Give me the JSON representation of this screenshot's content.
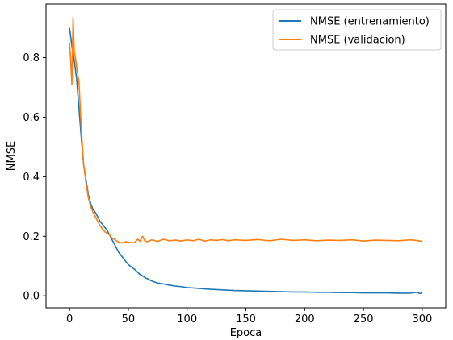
{
  "chart_data": {
    "type": "line",
    "xlabel": "Epoca",
    "ylabel": "NMSE",
    "xlim": [
      -20,
      320
    ],
    "ylim": [
      -0.04,
      0.98
    ],
    "xticks": [
      0,
      50,
      100,
      150,
      200,
      250,
      300
    ],
    "yticks": [
      0.0,
      0.2,
      0.4,
      0.6,
      0.8
    ],
    "grid": false,
    "legend_position": "top-right",
    "series": [
      {
        "name": "NMSE (entrenamiento)",
        "color": "#1f77b4",
        "x": [
          0,
          2,
          4,
          6,
          8,
          10,
          12,
          14,
          16,
          18,
          20,
          22,
          24,
          26,
          28,
          30,
          32,
          34,
          36,
          38,
          40,
          42,
          45,
          48,
          50,
          55,
          60,
          65,
          70,
          75,
          80,
          85,
          90,
          95,
          100,
          110,
          120,
          130,
          140,
          150,
          160,
          170,
          180,
          190,
          200,
          210,
          220,
          230,
          240,
          250,
          260,
          270,
          280,
          290,
          295,
          298,
          300
        ],
        "y": [
          0.9,
          0.84,
          0.79,
          0.73,
          0.63,
          0.53,
          0.44,
          0.39,
          0.34,
          0.31,
          0.29,
          0.28,
          0.265,
          0.25,
          0.24,
          0.23,
          0.22,
          0.205,
          0.19,
          0.175,
          0.16,
          0.145,
          0.13,
          0.115,
          0.105,
          0.09,
          0.072,
          0.06,
          0.05,
          0.043,
          0.04,
          0.036,
          0.033,
          0.031,
          0.028,
          0.025,
          0.022,
          0.02,
          0.018,
          0.017,
          0.016,
          0.015,
          0.014,
          0.013,
          0.013,
          0.012,
          0.012,
          0.011,
          0.011,
          0.01,
          0.01,
          0.01,
          0.009,
          0.009,
          0.012,
          0.008,
          0.01
        ]
      },
      {
        "name": "NMSE (validacion)",
        "color": "#ff7f0e",
        "x": [
          0,
          1,
          2,
          3,
          4,
          5,
          6,
          8,
          10,
          12,
          14,
          16,
          18,
          20,
          22,
          24,
          26,
          28,
          30,
          32,
          34,
          36,
          38,
          40,
          42,
          45,
          48,
          50,
          55,
          58,
          60,
          62,
          64,
          66,
          70,
          75,
          80,
          85,
          90,
          95,
          100,
          105,
          110,
          115,
          120,
          125,
          130,
          135,
          140,
          150,
          160,
          170,
          180,
          190,
          200,
          210,
          220,
          230,
          240,
          250,
          260,
          270,
          280,
          290,
          295,
          300
        ],
        "y": [
          0.85,
          0.79,
          0.71,
          0.935,
          0.82,
          0.8,
          0.77,
          0.72,
          0.56,
          0.44,
          0.38,
          0.33,
          0.3,
          0.28,
          0.265,
          0.25,
          0.235,
          0.225,
          0.215,
          0.21,
          0.205,
          0.195,
          0.19,
          0.185,
          0.18,
          0.178,
          0.182,
          0.18,
          0.178,
          0.19,
          0.183,
          0.2,
          0.185,
          0.182,
          0.188,
          0.183,
          0.19,
          0.185,
          0.187,
          0.184,
          0.188,
          0.185,
          0.19,
          0.184,
          0.188,
          0.186,
          0.189,
          0.185,
          0.188,
          0.186,
          0.189,
          0.185,
          0.19,
          0.186,
          0.188,
          0.185,
          0.187,
          0.186,
          0.188,
          0.184,
          0.187,
          0.186,
          0.185,
          0.188,
          0.186,
          0.183
        ]
      }
    ]
  }
}
